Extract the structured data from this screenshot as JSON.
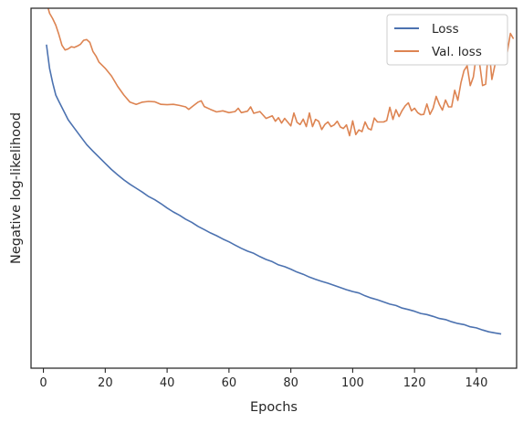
{
  "chart_data": {
    "type": "line",
    "title": "",
    "xlabel": "Epochs",
    "ylabel": "Negative log-likelihood",
    "xlim": [
      -4,
      153
    ],
    "ylim": [
      0,
      100
    ],
    "xticks": [
      0,
      20,
      40,
      60,
      80,
      100,
      120,
      140
    ],
    "yticks_shown": false,
    "grid": false,
    "legend_position": "top-right",
    "series": [
      {
        "name": "Loss",
        "color": "#4C72B0",
        "points": [
          [
            1,
            89.9
          ],
          [
            2,
            83.3
          ],
          [
            3,
            79.3
          ],
          [
            4,
            75.9
          ],
          [
            5,
            74.1
          ],
          [
            7,
            70.7
          ],
          [
            8,
            69.0
          ],
          [
            10,
            66.7
          ],
          [
            12,
            64.4
          ],
          [
            14,
            62.1
          ],
          [
            16,
            60.3
          ],
          [
            18,
            58.6
          ],
          [
            20,
            56.9
          ],
          [
            22,
            55.2
          ],
          [
            24,
            53.7
          ],
          [
            26,
            52.3
          ],
          [
            28,
            51.1
          ],
          [
            30,
            50.0
          ],
          [
            32,
            48.9
          ],
          [
            34,
            47.7
          ],
          [
            36,
            46.8
          ],
          [
            38,
            45.7
          ],
          [
            40,
            44.5
          ],
          [
            42,
            43.4
          ],
          [
            44,
            42.5
          ],
          [
            46,
            41.4
          ],
          [
            48,
            40.5
          ],
          [
            50,
            39.4
          ],
          [
            52,
            38.5
          ],
          [
            54,
            37.6
          ],
          [
            56,
            36.8
          ],
          [
            58,
            35.9
          ],
          [
            60,
            35.1
          ],
          [
            62,
            34.2
          ],
          [
            64,
            33.3
          ],
          [
            66,
            32.5
          ],
          [
            68,
            31.9
          ],
          [
            70,
            31.0
          ],
          [
            72,
            30.2
          ],
          [
            74,
            29.6
          ],
          [
            76,
            28.7
          ],
          [
            78,
            28.2
          ],
          [
            80,
            27.5
          ],
          [
            82,
            26.7
          ],
          [
            84,
            26.1
          ],
          [
            86,
            25.3
          ],
          [
            88,
            24.7
          ],
          [
            90,
            24.1
          ],
          [
            92,
            23.6
          ],
          [
            94,
            23.0
          ],
          [
            96,
            22.4
          ],
          [
            98,
            21.8
          ],
          [
            100,
            21.3
          ],
          [
            102,
            20.9
          ],
          [
            104,
            20.1
          ],
          [
            106,
            19.5
          ],
          [
            108,
            19.0
          ],
          [
            110,
            18.4
          ],
          [
            112,
            17.8
          ],
          [
            114,
            17.4
          ],
          [
            116,
            16.7
          ],
          [
            118,
            16.3
          ],
          [
            120,
            15.8
          ],
          [
            122,
            15.2
          ],
          [
            124,
            14.9
          ],
          [
            126,
            14.4
          ],
          [
            128,
            13.8
          ],
          [
            130,
            13.5
          ],
          [
            132,
            12.9
          ],
          [
            134,
            12.4
          ],
          [
            136,
            12.1
          ],
          [
            138,
            11.5
          ],
          [
            140,
            11.2
          ],
          [
            142,
            10.6
          ],
          [
            144,
            10.1
          ],
          [
            146,
            9.8
          ],
          [
            148,
            9.5
          ]
        ]
      },
      {
        "name": "Val. loss",
        "color": "#DD8452",
        "points": [
          [
            1,
            101.7
          ],
          [
            2,
            98.6
          ],
          [
            3,
            97.1
          ],
          [
            4,
            95.3
          ],
          [
            5,
            92.7
          ],
          [
            6,
            89.7
          ],
          [
            7,
            88.4
          ],
          [
            8,
            88.7
          ],
          [
            9,
            89.3
          ],
          [
            10,
            89.1
          ],
          [
            11,
            89.5
          ],
          [
            12,
            90.0
          ],
          [
            13,
            91.1
          ],
          [
            14,
            91.3
          ],
          [
            15,
            90.5
          ],
          [
            16,
            88.0
          ],
          [
            17,
            86.7
          ],
          [
            18,
            85.0
          ],
          [
            20,
            83.3
          ],
          [
            22,
            81.2
          ],
          [
            24,
            78.3
          ],
          [
            26,
            75.9
          ],
          [
            28,
            73.9
          ],
          [
            30,
            73.3
          ],
          [
            32,
            73.9
          ],
          [
            34,
            74.1
          ],
          [
            36,
            74.0
          ],
          [
            38,
            73.3
          ],
          [
            40,
            73.2
          ],
          [
            42,
            73.3
          ],
          [
            44,
            73.0
          ],
          [
            46,
            72.6
          ],
          [
            47,
            71.9
          ],
          [
            48,
            72.6
          ],
          [
            50,
            73.9
          ],
          [
            51,
            74.3
          ],
          [
            52,
            72.7
          ],
          [
            54,
            71.9
          ],
          [
            56,
            71.2
          ],
          [
            58,
            71.5
          ],
          [
            60,
            71.0
          ],
          [
            62,
            71.3
          ],
          [
            63,
            72.2
          ],
          [
            64,
            71.0
          ],
          [
            66,
            71.4
          ],
          [
            67,
            72.6
          ],
          [
            68,
            70.8
          ],
          [
            70,
            71.3
          ],
          [
            72,
            69.4
          ],
          [
            74,
            70.1
          ],
          [
            75,
            68.6
          ],
          [
            76,
            69.6
          ],
          [
            77,
            68.1
          ],
          [
            78,
            69.4
          ],
          [
            80,
            67.3
          ],
          [
            81,
            70.9
          ],
          [
            82,
            68.3
          ],
          [
            83,
            67.7
          ],
          [
            84,
            69.2
          ],
          [
            85,
            67.1
          ],
          [
            86,
            70.9
          ],
          [
            87,
            67.1
          ],
          [
            88,
            69.1
          ],
          [
            89,
            68.6
          ],
          [
            90,
            66.3
          ],
          [
            91,
            67.7
          ],
          [
            92,
            68.4
          ],
          [
            93,
            67.1
          ],
          [
            94,
            67.6
          ],
          [
            95,
            68.6
          ],
          [
            96,
            67.0
          ],
          [
            97,
            66.6
          ],
          [
            98,
            67.6
          ],
          [
            99,
            64.6
          ],
          [
            100,
            68.7
          ],
          [
            101,
            64.9
          ],
          [
            102,
            66.2
          ],
          [
            103,
            65.7
          ],
          [
            104,
            68.4
          ],
          [
            105,
            66.6
          ],
          [
            106,
            66.2
          ],
          [
            107,
            69.5
          ],
          [
            108,
            68.4
          ],
          [
            110,
            68.4
          ],
          [
            111,
            68.8
          ],
          [
            112,
            72.5
          ],
          [
            113,
            69.1
          ],
          [
            114,
            71.8
          ],
          [
            115,
            69.9
          ],
          [
            116,
            71.6
          ],
          [
            117,
            72.9
          ],
          [
            118,
            73.7
          ],
          [
            119,
            71.5
          ],
          [
            120,
            72.2
          ],
          [
            121,
            71.0
          ],
          [
            122,
            70.4
          ],
          [
            123,
            70.5
          ],
          [
            124,
            73.4
          ],
          [
            125,
            70.5
          ],
          [
            126,
            72.2
          ],
          [
            127,
            75.5
          ],
          [
            128,
            73.3
          ],
          [
            129,
            71.7
          ],
          [
            130,
            74.5
          ],
          [
            131,
            72.6
          ],
          [
            132,
            72.6
          ],
          [
            133,
            77.2
          ],
          [
            134,
            74.4
          ],
          [
            135,
            79.3
          ],
          [
            136,
            82.7
          ],
          [
            137,
            84.0
          ],
          [
            138,
            78.5
          ],
          [
            139,
            80.9
          ],
          [
            140,
            87.1
          ],
          [
            141,
            84.9
          ],
          [
            142,
            78.5
          ],
          [
            143,
            78.9
          ],
          [
            144,
            89.5
          ],
          [
            145,
            80.2
          ],
          [
            146,
            84.3
          ],
          [
            147,
            84.8
          ],
          [
            148,
            88.9
          ],
          [
            149,
            86.6
          ],
          [
            150,
            87.8
          ],
          [
            151,
            93.0
          ],
          [
            152,
            91.5
          ]
        ]
      }
    ]
  },
  "colors": {
    "frame": "#262626",
    "background": "#ffffff"
  }
}
